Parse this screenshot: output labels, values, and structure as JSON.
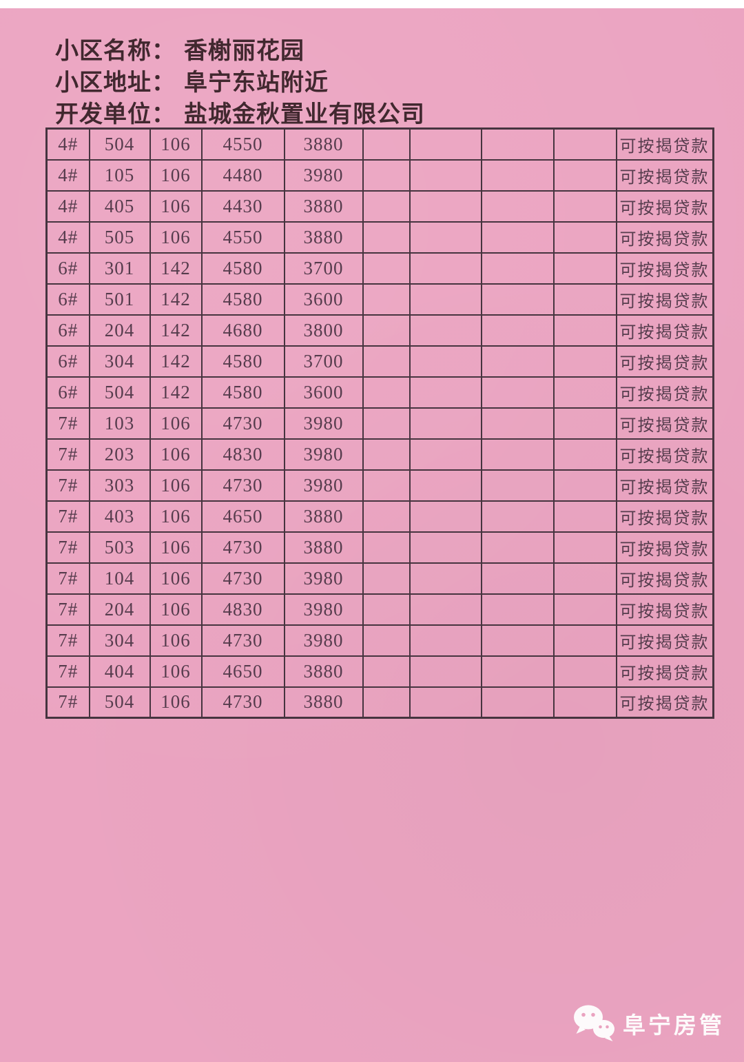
{
  "header": {
    "community_name_label": "小区名称：",
    "community_name": "香榭丽花园",
    "address_label": "小区地址：",
    "address": "阜宁东站附近",
    "developer_label": "开发单位：",
    "developer": "盐城金秋置业有限公司"
  },
  "table": {
    "rows": [
      {
        "building": "4#",
        "room": "504",
        "area": "106",
        "price1": "4550",
        "price2": "3880",
        "note": "可按揭贷款"
      },
      {
        "building": "4#",
        "room": "105",
        "area": "106",
        "price1": "4480",
        "price2": "3980",
        "note": "可按揭贷款"
      },
      {
        "building": "4#",
        "room": "405",
        "area": "106",
        "price1": "4430",
        "price2": "3880",
        "note": "可按揭贷款"
      },
      {
        "building": "4#",
        "room": "505",
        "area": "106",
        "price1": "4550",
        "price2": "3880",
        "note": "可按揭贷款"
      },
      {
        "building": "6#",
        "room": "301",
        "area": "142",
        "price1": "4580",
        "price2": "3700",
        "note": "可按揭贷款"
      },
      {
        "building": "6#",
        "room": "501",
        "area": "142",
        "price1": "4580",
        "price2": "3600",
        "note": "可按揭贷款"
      },
      {
        "building": "6#",
        "room": "204",
        "area": "142",
        "price1": "4680",
        "price2": "3800",
        "note": "可按揭贷款"
      },
      {
        "building": "6#",
        "room": "304",
        "area": "142",
        "price1": "4580",
        "price2": "3700",
        "note": "可按揭贷款"
      },
      {
        "building": "6#",
        "room": "504",
        "area": "142",
        "price1": "4580",
        "price2": "3600",
        "note": "可按揭贷款"
      },
      {
        "building": "7#",
        "room": "103",
        "area": "106",
        "price1": "4730",
        "price2": "3980",
        "note": "可按揭贷款"
      },
      {
        "building": "7#",
        "room": "203",
        "area": "106",
        "price1": "4830",
        "price2": "3980",
        "note": "可按揭贷款"
      },
      {
        "building": "7#",
        "room": "303",
        "area": "106",
        "price1": "4730",
        "price2": "3980",
        "note": "可按揭贷款"
      },
      {
        "building": "7#",
        "room": "403",
        "area": "106",
        "price1": "4650",
        "price2": "3880",
        "note": "可按揭贷款"
      },
      {
        "building": "7#",
        "room": "503",
        "area": "106",
        "price1": "4730",
        "price2": "3880",
        "note": "可按揭贷款"
      },
      {
        "building": "7#",
        "room": "104",
        "area": "106",
        "price1": "4730",
        "price2": "3980",
        "note": "可按揭贷款"
      },
      {
        "building": "7#",
        "room": "204",
        "area": "106",
        "price1": "4830",
        "price2": "3980",
        "note": "可按揭贷款"
      },
      {
        "building": "7#",
        "room": "304",
        "area": "106",
        "price1": "4730",
        "price2": "3980",
        "note": "可按揭贷款"
      },
      {
        "building": "7#",
        "room": "404",
        "area": "106",
        "price1": "4650",
        "price2": "3880",
        "note": "可按揭贷款"
      },
      {
        "building": "7#",
        "room": "504",
        "area": "106",
        "price1": "4730",
        "price2": "3880",
        "note": "可按揭贷款"
      }
    ]
  },
  "watermark": {
    "icon": "wechat-icon",
    "text": "阜宁房管"
  },
  "colors": {
    "paper_pink": "#eba4c1",
    "grid_border": "#46343f",
    "header_ink": "#41282f",
    "cell_ink": "#563c4d",
    "watermark_white": "#ffffff"
  }
}
